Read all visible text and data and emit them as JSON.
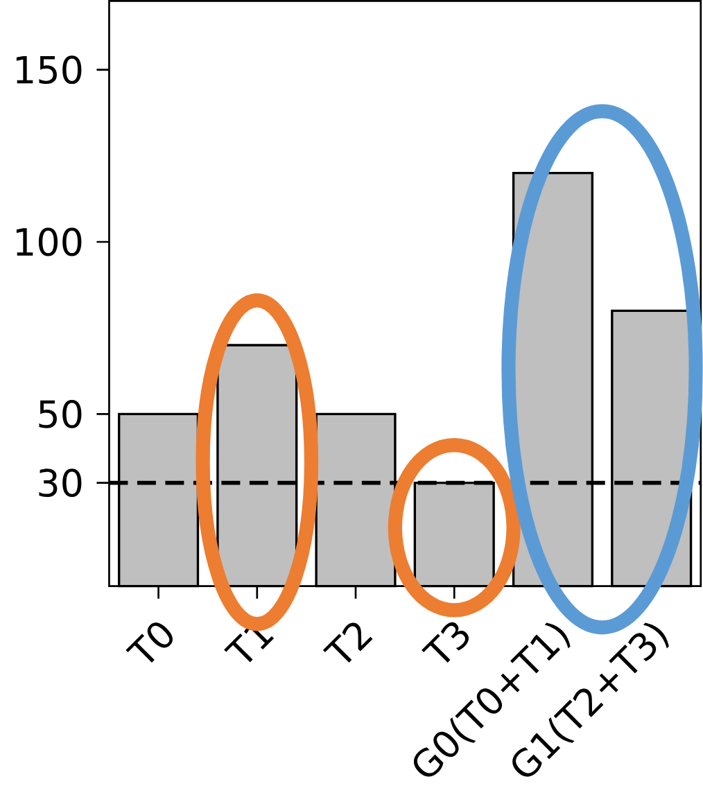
{
  "chart_data": {
    "type": "bar",
    "categories": [
      "T0",
      "T1",
      "T2",
      "T3",
      "G0(T0+T1)",
      "G1(T2+T3)"
    ],
    "values": [
      50,
      70,
      50,
      30,
      120,
      80
    ],
    "color": "#bfbfbf",
    "ylim": [
      0,
      170
    ],
    "yticks": [
      30,
      50,
      100,
      150
    ],
    "ref_lines": [
      {
        "axis": "y",
        "value": 30,
        "color": "#000000",
        "line_style": "dashed"
      }
    ]
  }
}
